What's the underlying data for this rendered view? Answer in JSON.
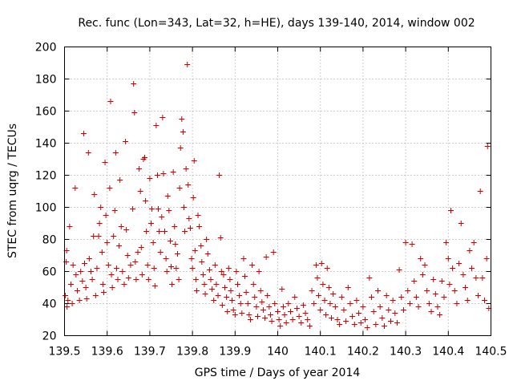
{
  "chart_data": {
    "type": "scatter",
    "title": "Rec. func (Lon=343, Lat=32, h=HE), days 139-140, 2014, window 002",
    "xlabel": "GPS time / Days of year 2014",
    "ylabel": "STEC from uqrg / TECUs",
    "xlim": [
      139.5,
      140.5
    ],
    "ylim": [
      20,
      200
    ],
    "grid": true,
    "marker": "+",
    "color": "#cc0000",
    "x_ticks": [
      139.5,
      139.6,
      139.7,
      139.8,
      139.9,
      140.0,
      140.1,
      140.2,
      140.3,
      140.4,
      140.5
    ],
    "x_tick_labels": [
      "139.5",
      "139.6",
      "139.7",
      "139.8",
      "139.9",
      "140",
      "140.1",
      "140.2",
      "140.3",
      "140.4",
      "140.5"
    ],
    "y_ticks": [
      20,
      40,
      60,
      80,
      100,
      120,
      140,
      160,
      180,
      200
    ],
    "y_tick_labels": [
      "20",
      "40",
      "60",
      "80",
      "100",
      "120",
      "140",
      "160",
      "180",
      "200"
    ],
    "series": [
      {
        "name": "STEC",
        "points": [
          [
            139.502,
            45
          ],
          [
            139.504,
            66
          ],
          [
            139.505,
            73
          ],
          [
            139.506,
            38
          ],
          [
            139.508,
            42
          ],
          [
            139.512,
            88
          ],
          [
            139.515,
            52
          ],
          [
            139.518,
            40
          ],
          [
            139.52,
            64
          ],
          [
            139.525,
            112
          ],
          [
            139.527,
            58
          ],
          [
            139.53,
            48
          ],
          [
            139.535,
            42
          ],
          [
            139.538,
            60
          ],
          [
            139.542,
            54
          ],
          [
            139.545,
            146
          ],
          [
            139.547,
            65
          ],
          [
            139.55,
            50
          ],
          [
            139.552,
            43
          ],
          [
            139.556,
            134
          ],
          [
            139.558,
            68
          ],
          [
            139.562,
            60
          ],
          [
            139.565,
            55
          ],
          [
            139.568,
            82
          ],
          [
            139.57,
            108
          ],
          [
            139.573,
            45
          ],
          [
            139.576,
            62
          ],
          [
            139.58,
            82
          ],
          [
            139.582,
            90
          ],
          [
            139.585,
            100
          ],
          [
            139.588,
            72
          ],
          [
            139.59,
            52
          ],
          [
            139.592,
            47
          ],
          [
            139.595,
            128
          ],
          [
            139.597,
            95
          ],
          [
            139.6,
            78
          ],
          [
            139.603,
            64
          ],
          [
            139.606,
            112
          ],
          [
            139.608,
            166
          ],
          [
            139.61,
            58
          ],
          [
            139.612,
            50
          ],
          [
            139.615,
            82
          ],
          [
            139.618,
            98
          ],
          [
            139.62,
            134
          ],
          [
            139.622,
            62
          ],
          [
            139.625,
            55
          ],
          [
            139.628,
            76
          ],
          [
            139.63,
            117
          ],
          [
            139.633,
            88
          ],
          [
            139.636,
            60
          ],
          [
            139.64,
            52
          ],
          [
            139.643,
            141
          ],
          [
            139.645,
            86
          ],
          [
            139.648,
            70
          ],
          [
            139.65,
            56
          ],
          [
            139.655,
            64
          ],
          [
            139.66,
            99
          ],
          [
            139.662,
            177
          ],
          [
            139.664,
            159
          ],
          [
            139.666,
            66
          ],
          [
            139.668,
            55
          ],
          [
            139.672,
            72
          ],
          [
            139.675,
            124
          ],
          [
            139.678,
            110
          ],
          [
            139.68,
            75
          ],
          [
            139.682,
            58
          ],
          [
            139.685,
            130
          ],
          [
            139.688,
            131
          ],
          [
            139.69,
            104
          ],
          [
            139.692,
            85
          ],
          [
            139.695,
            64
          ],
          [
            139.697,
            55
          ],
          [
            139.7,
            118
          ],
          [
            139.703,
            90
          ],
          [
            139.705,
            99
          ],
          [
            139.708,
            78
          ],
          [
            139.71,
            62
          ],
          [
            139.712,
            51
          ],
          [
            139.715,
            151
          ],
          [
            139.718,
            120
          ],
          [
            139.72,
            99
          ],
          [
            139.722,
            85
          ],
          [
            139.725,
            72
          ],
          [
            139.728,
            94
          ],
          [
            139.73,
            156
          ],
          [
            139.732,
            121
          ],
          [
            139.735,
            85
          ],
          [
            139.738,
            68
          ],
          [
            139.74,
            60
          ],
          [
            139.742,
            107
          ],
          [
            139.745,
            98
          ],
          [
            139.748,
            79
          ],
          [
            139.75,
            63
          ],
          [
            139.752,
            52
          ],
          [
            139.755,
            122
          ],
          [
            139.758,
            88
          ],
          [
            139.76,
            77
          ],
          [
            139.762,
            62
          ],
          [
            139.765,
            71
          ],
          [
            139.768,
            55
          ],
          [
            139.77,
            112
          ],
          [
            139.772,
            137
          ],
          [
            139.775,
            155
          ],
          [
            139.778,
            147
          ],
          [
            139.78,
            100
          ],
          [
            139.782,
            85
          ],
          [
            139.785,
            124
          ],
          [
            139.788,
            189
          ],
          [
            139.79,
            114
          ],
          [
            139.792,
            93
          ],
          [
            139.795,
            87
          ],
          [
            139.798,
            68
          ],
          [
            139.8,
            62
          ],
          [
            139.802,
            106
          ],
          [
            139.804,
            129
          ],
          [
            139.806,
            73
          ],
          [
            139.808,
            55
          ],
          [
            139.81,
            48
          ],
          [
            139.813,
            95
          ],
          [
            139.816,
            88
          ],
          [
            139.82,
            76
          ],
          [
            139.822,
            66
          ],
          [
            139.825,
            58
          ],
          [
            139.828,
            52
          ],
          [
            139.83,
            46
          ],
          [
            139.833,
            80
          ],
          [
            139.836,
            71
          ],
          [
            139.84,
            61
          ],
          [
            139.843,
            55
          ],
          [
            139.846,
            49
          ],
          [
            139.85,
            42
          ],
          [
            139.853,
            64
          ],
          [
            139.856,
            52
          ],
          [
            139.86,
            45
          ],
          [
            139.863,
            120
          ],
          [
            139.866,
            81
          ],
          [
            139.868,
            60
          ],
          [
            139.87,
            39
          ],
          [
            139.873,
            58
          ],
          [
            139.876,
            50
          ],
          [
            139.88,
            44
          ],
          [
            139.882,
            35
          ],
          [
            139.885,
            62
          ],
          [
            139.888,
            55
          ],
          [
            139.89,
            48
          ],
          [
            139.893,
            42
          ],
          [
            139.896,
            36
          ],
          [
            139.9,
            33
          ],
          [
            139.903,
            60
          ],
          [
            139.906,
            52
          ],
          [
            139.91,
            45
          ],
          [
            139.913,
            40
          ],
          [
            139.916,
            34
          ],
          [
            139.92,
            68
          ],
          [
            139.923,
            57
          ],
          [
            139.926,
            47
          ],
          [
            139.93,
            40
          ],
          [
            139.933,
            33
          ],
          [
            139.936,
            30
          ],
          [
            139.94,
            64
          ],
          [
            139.943,
            52
          ],
          [
            139.946,
            44
          ],
          [
            139.95,
            38
          ],
          [
            139.953,
            32
          ],
          [
            139.956,
            60
          ],
          [
            139.96,
            48
          ],
          [
            139.963,
            41
          ],
          [
            139.966,
            36
          ],
          [
            139.97,
            31
          ],
          [
            139.973,
            69
          ],
          [
            139.976,
            45
          ],
          [
            139.98,
            38
          ],
          [
            139.983,
            33
          ],
          [
            139.986,
            29
          ],
          [
            139.99,
            72
          ],
          [
            139.993,
            40
          ],
          [
            140.0,
            35
          ],
          [
            140.003,
            30
          ],
          [
            140.006,
            26
          ],
          [
            140.01,
            49
          ],
          [
            140.013,
            38
          ],
          [
            140.016,
            33
          ],
          [
            140.02,
            28
          ],
          [
            140.025,
            40
          ],
          [
            140.03,
            35
          ],
          [
            140.035,
            30
          ],
          [
            140.04,
            44
          ],
          [
            140.045,
            37
          ],
          [
            140.05,
            32
          ],
          [
            140.055,
            28
          ],
          [
            140.06,
            39
          ],
          [
            140.065,
            34
          ],
          [
            140.07,
            30
          ],
          [
            140.075,
            26
          ],
          [
            140.08,
            48
          ],
          [
            140.085,
            40
          ],
          [
            140.09,
            64
          ],
          [
            140.093,
            56
          ],
          [
            140.096,
            45
          ],
          [
            140.1,
            36
          ],
          [
            140.103,
            65
          ],
          [
            140.106,
            52
          ],
          [
            140.11,
            42
          ],
          [
            140.113,
            33
          ],
          [
            140.116,
            62
          ],
          [
            140.12,
            50
          ],
          [
            140.123,
            40
          ],
          [
            140.126,
            31
          ],
          [
            140.13,
            46
          ],
          [
            140.135,
            38
          ],
          [
            140.14,
            30
          ],
          [
            140.145,
            27
          ],
          [
            140.15,
            44
          ],
          [
            140.155,
            36
          ],
          [
            140.16,
            29
          ],
          [
            140.165,
            50
          ],
          [
            140.17,
            40
          ],
          [
            140.175,
            32
          ],
          [
            140.18,
            27
          ],
          [
            140.185,
            42
          ],
          [
            140.19,
            34
          ],
          [
            140.195,
            28
          ],
          [
            140.2,
            38
          ],
          [
            140.205,
            30
          ],
          [
            140.21,
            25
          ],
          [
            140.215,
            56
          ],
          [
            140.22,
            44
          ],
          [
            140.225,
            35
          ],
          [
            140.23,
            27
          ],
          [
            140.235,
            48
          ],
          [
            140.24,
            38
          ],
          [
            140.245,
            31
          ],
          [
            140.25,
            26
          ],
          [
            140.255,
            45
          ],
          [
            140.26,
            36
          ],
          [
            140.265,
            29
          ],
          [
            140.27,
            42
          ],
          [
            140.275,
            34
          ],
          [
            140.28,
            28
          ],
          [
            140.285,
            61
          ],
          [
            140.29,
            44
          ],
          [
            140.295,
            36
          ],
          [
            140.3,
            78
          ],
          [
            140.305,
            48
          ],
          [
            140.31,
            40
          ],
          [
            140.315,
            77
          ],
          [
            140.32,
            54
          ],
          [
            140.325,
            44
          ],
          [
            140.33,
            38
          ],
          [
            140.335,
            68
          ],
          [
            140.34,
            58
          ],
          [
            140.345,
            64
          ],
          [
            140.35,
            48
          ],
          [
            140.355,
            40
          ],
          [
            140.36,
            35
          ],
          [
            140.365,
            55
          ],
          [
            140.37,
            46
          ],
          [
            140.375,
            38
          ],
          [
            140.38,
            33
          ],
          [
            140.385,
            54
          ],
          [
            140.39,
            44
          ],
          [
            140.395,
            78
          ],
          [
            140.4,
            68
          ],
          [
            140.403,
            52
          ],
          [
            140.406,
            98
          ],
          [
            140.41,
            62
          ],
          [
            140.415,
            48
          ],
          [
            140.42,
            40
          ],
          [
            140.425,
            65
          ],
          [
            140.43,
            90
          ],
          [
            140.435,
            58
          ],
          [
            140.44,
            50
          ],
          [
            140.445,
            42
          ],
          [
            140.45,
            73
          ],
          [
            140.455,
            62
          ],
          [
            140.46,
            78
          ],
          [
            140.465,
            56
          ],
          [
            140.47,
            45
          ],
          [
            140.475,
            110
          ],
          [
            140.48,
            56
          ],
          [
            140.485,
            42
          ],
          [
            140.49,
            68
          ],
          [
            140.492,
            138
          ],
          [
            140.495,
            37
          ]
        ]
      }
    ]
  }
}
